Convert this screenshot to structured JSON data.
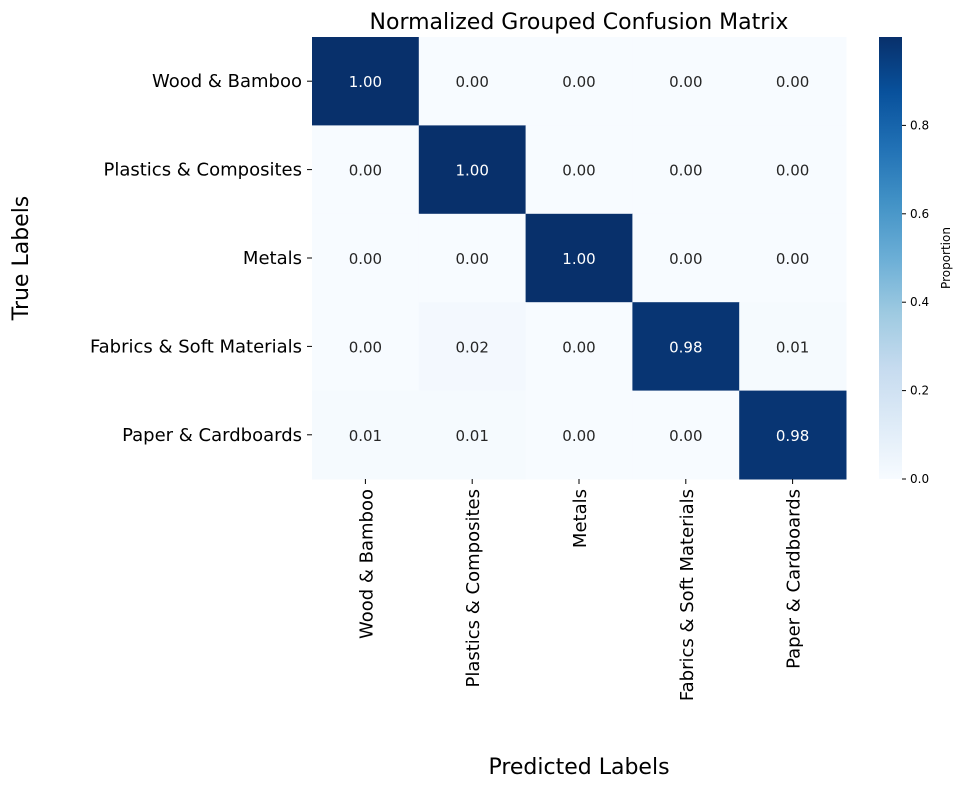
{
  "chart_data": {
    "type": "heatmap",
    "title": "Normalized Grouped Confusion Matrix",
    "xlabel": "Predicted Labels",
    "ylabel": "True Labels",
    "row_labels": [
      "Wood & Bamboo",
      "Plastics & Composites",
      "Metals",
      "Fabrics & Soft Materials",
      "Paper & Cardboards"
    ],
    "col_labels": [
      "Wood & Bamboo",
      "Plastics & Composites",
      "Metals",
      "Fabrics & Soft Materials",
      "Paper & Cardboards"
    ],
    "values": [
      [
        1.0,
        0.0,
        0.0,
        0.0,
        0.0
      ],
      [
        0.0,
        1.0,
        0.0,
        0.0,
        0.0
      ],
      [
        0.0,
        0.0,
        1.0,
        0.0,
        0.0
      ],
      [
        0.0,
        0.02,
        0.0,
        0.98,
        0.01
      ],
      [
        0.01,
        0.01,
        0.0,
        0.0,
        0.98
      ]
    ],
    "value_format": "0.00",
    "colormap": "Blues",
    "colorbar": {
      "label": "Proportion",
      "range": [
        0,
        1
      ],
      "ticks": [
        0.0,
        0.2,
        0.4,
        0.6,
        0.8
      ],
      "tick_labels": [
        "0.0",
        "0.2",
        "0.4",
        "0.6",
        "0.8"
      ]
    }
  }
}
